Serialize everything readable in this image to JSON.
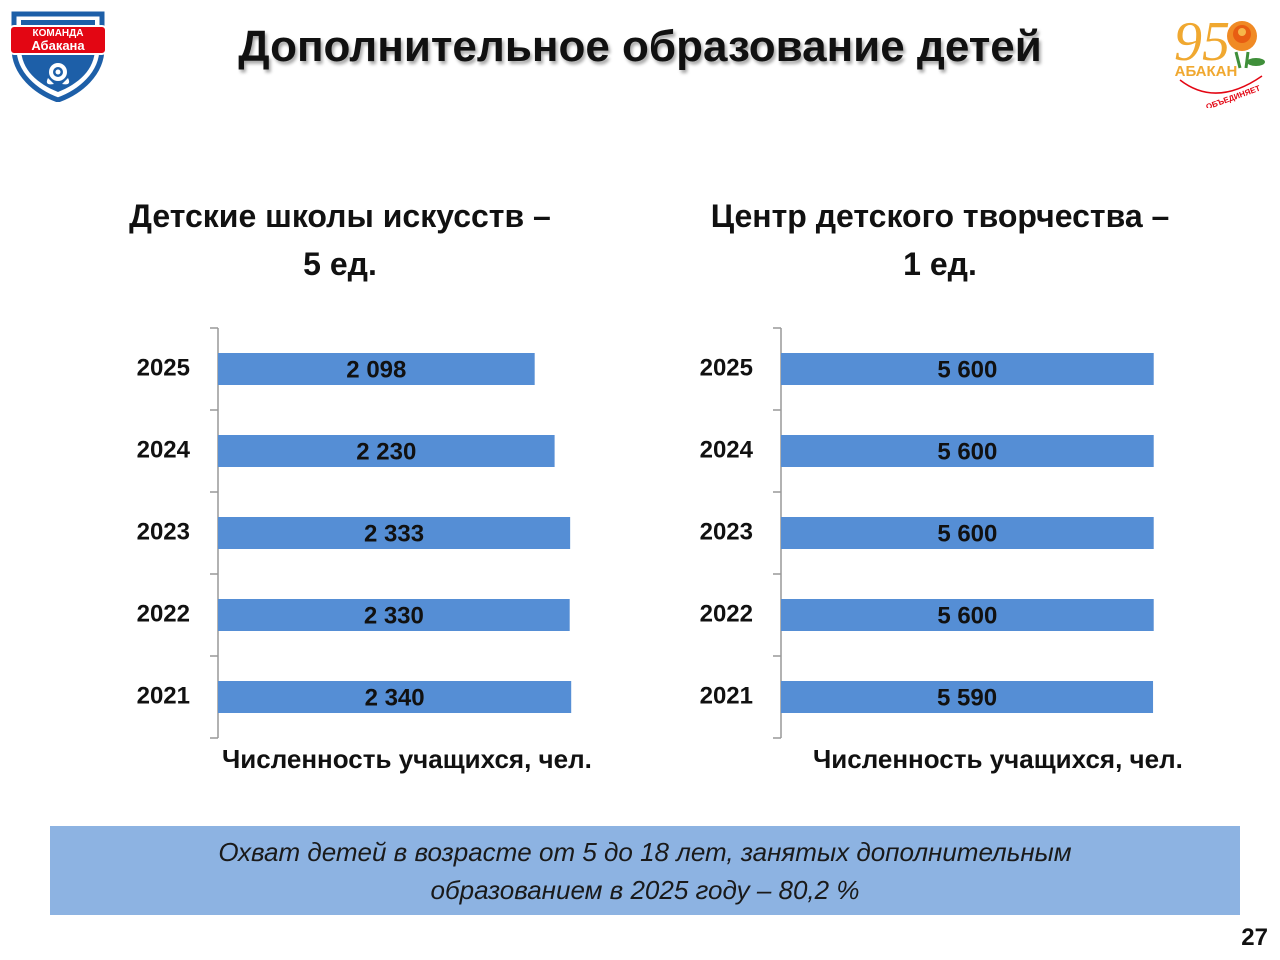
{
  "header": {
    "title": "Дополнительное образование детей",
    "logo_left_text": [
      "КОМАНДА",
      "Абакана"
    ],
    "logo_right_text": [
      "95",
      "АБАКАН",
      "ОБЪЕДИНЯЕТ"
    ]
  },
  "charts": {
    "left_title": [
      "Детские школы искусств –",
      "5 ед."
    ],
    "right_title": [
      "Центр детского творчества –",
      "1 ед."
    ]
  },
  "chart_data": [
    {
      "type": "bar",
      "orientation": "horizontal",
      "title": "Детские школы искусств – 5 ед.",
      "xlabel": "Численность учащихся, чел.",
      "categories": [
        "2025",
        "2024",
        "2023",
        "2022",
        "2021"
      ],
      "values": [
        2098,
        2230,
        2333,
        2330,
        2340
      ],
      "value_labels": [
        "2 098",
        "2 230",
        "2 333",
        "2 330",
        "2 340"
      ],
      "xlim": [
        0,
        2650
      ],
      "bar_color": "#558ed5",
      "grid": false
    },
    {
      "type": "bar",
      "orientation": "horizontal",
      "title": "Центр детского творчества – 1 ед.",
      "xlabel": "Численность учащихся, чел.",
      "categories": [
        "2025",
        "2024",
        "2023",
        "2022",
        "2021"
      ],
      "values": [
        5600,
        5600,
        5600,
        5600,
        5590
      ],
      "value_labels": [
        "5 600",
        "5 600",
        "5 600",
        "5 600",
        "5 590"
      ],
      "xlim": [
        0,
        6010
      ],
      "bar_color": "#558ed5",
      "grid": false
    }
  ],
  "summary": {
    "line1": "Охват детей в возрасте от 5 до 18 лет, занятых дополнительным",
    "line2": "образованием в 2025 году – 80,2 %"
  },
  "page_number": "27",
  "colors": {
    "bar": "#558ed5",
    "summary_bg": "#8db3e2",
    "logo_red": "#e30613",
    "logo_blue": "#1d5fa8"
  }
}
